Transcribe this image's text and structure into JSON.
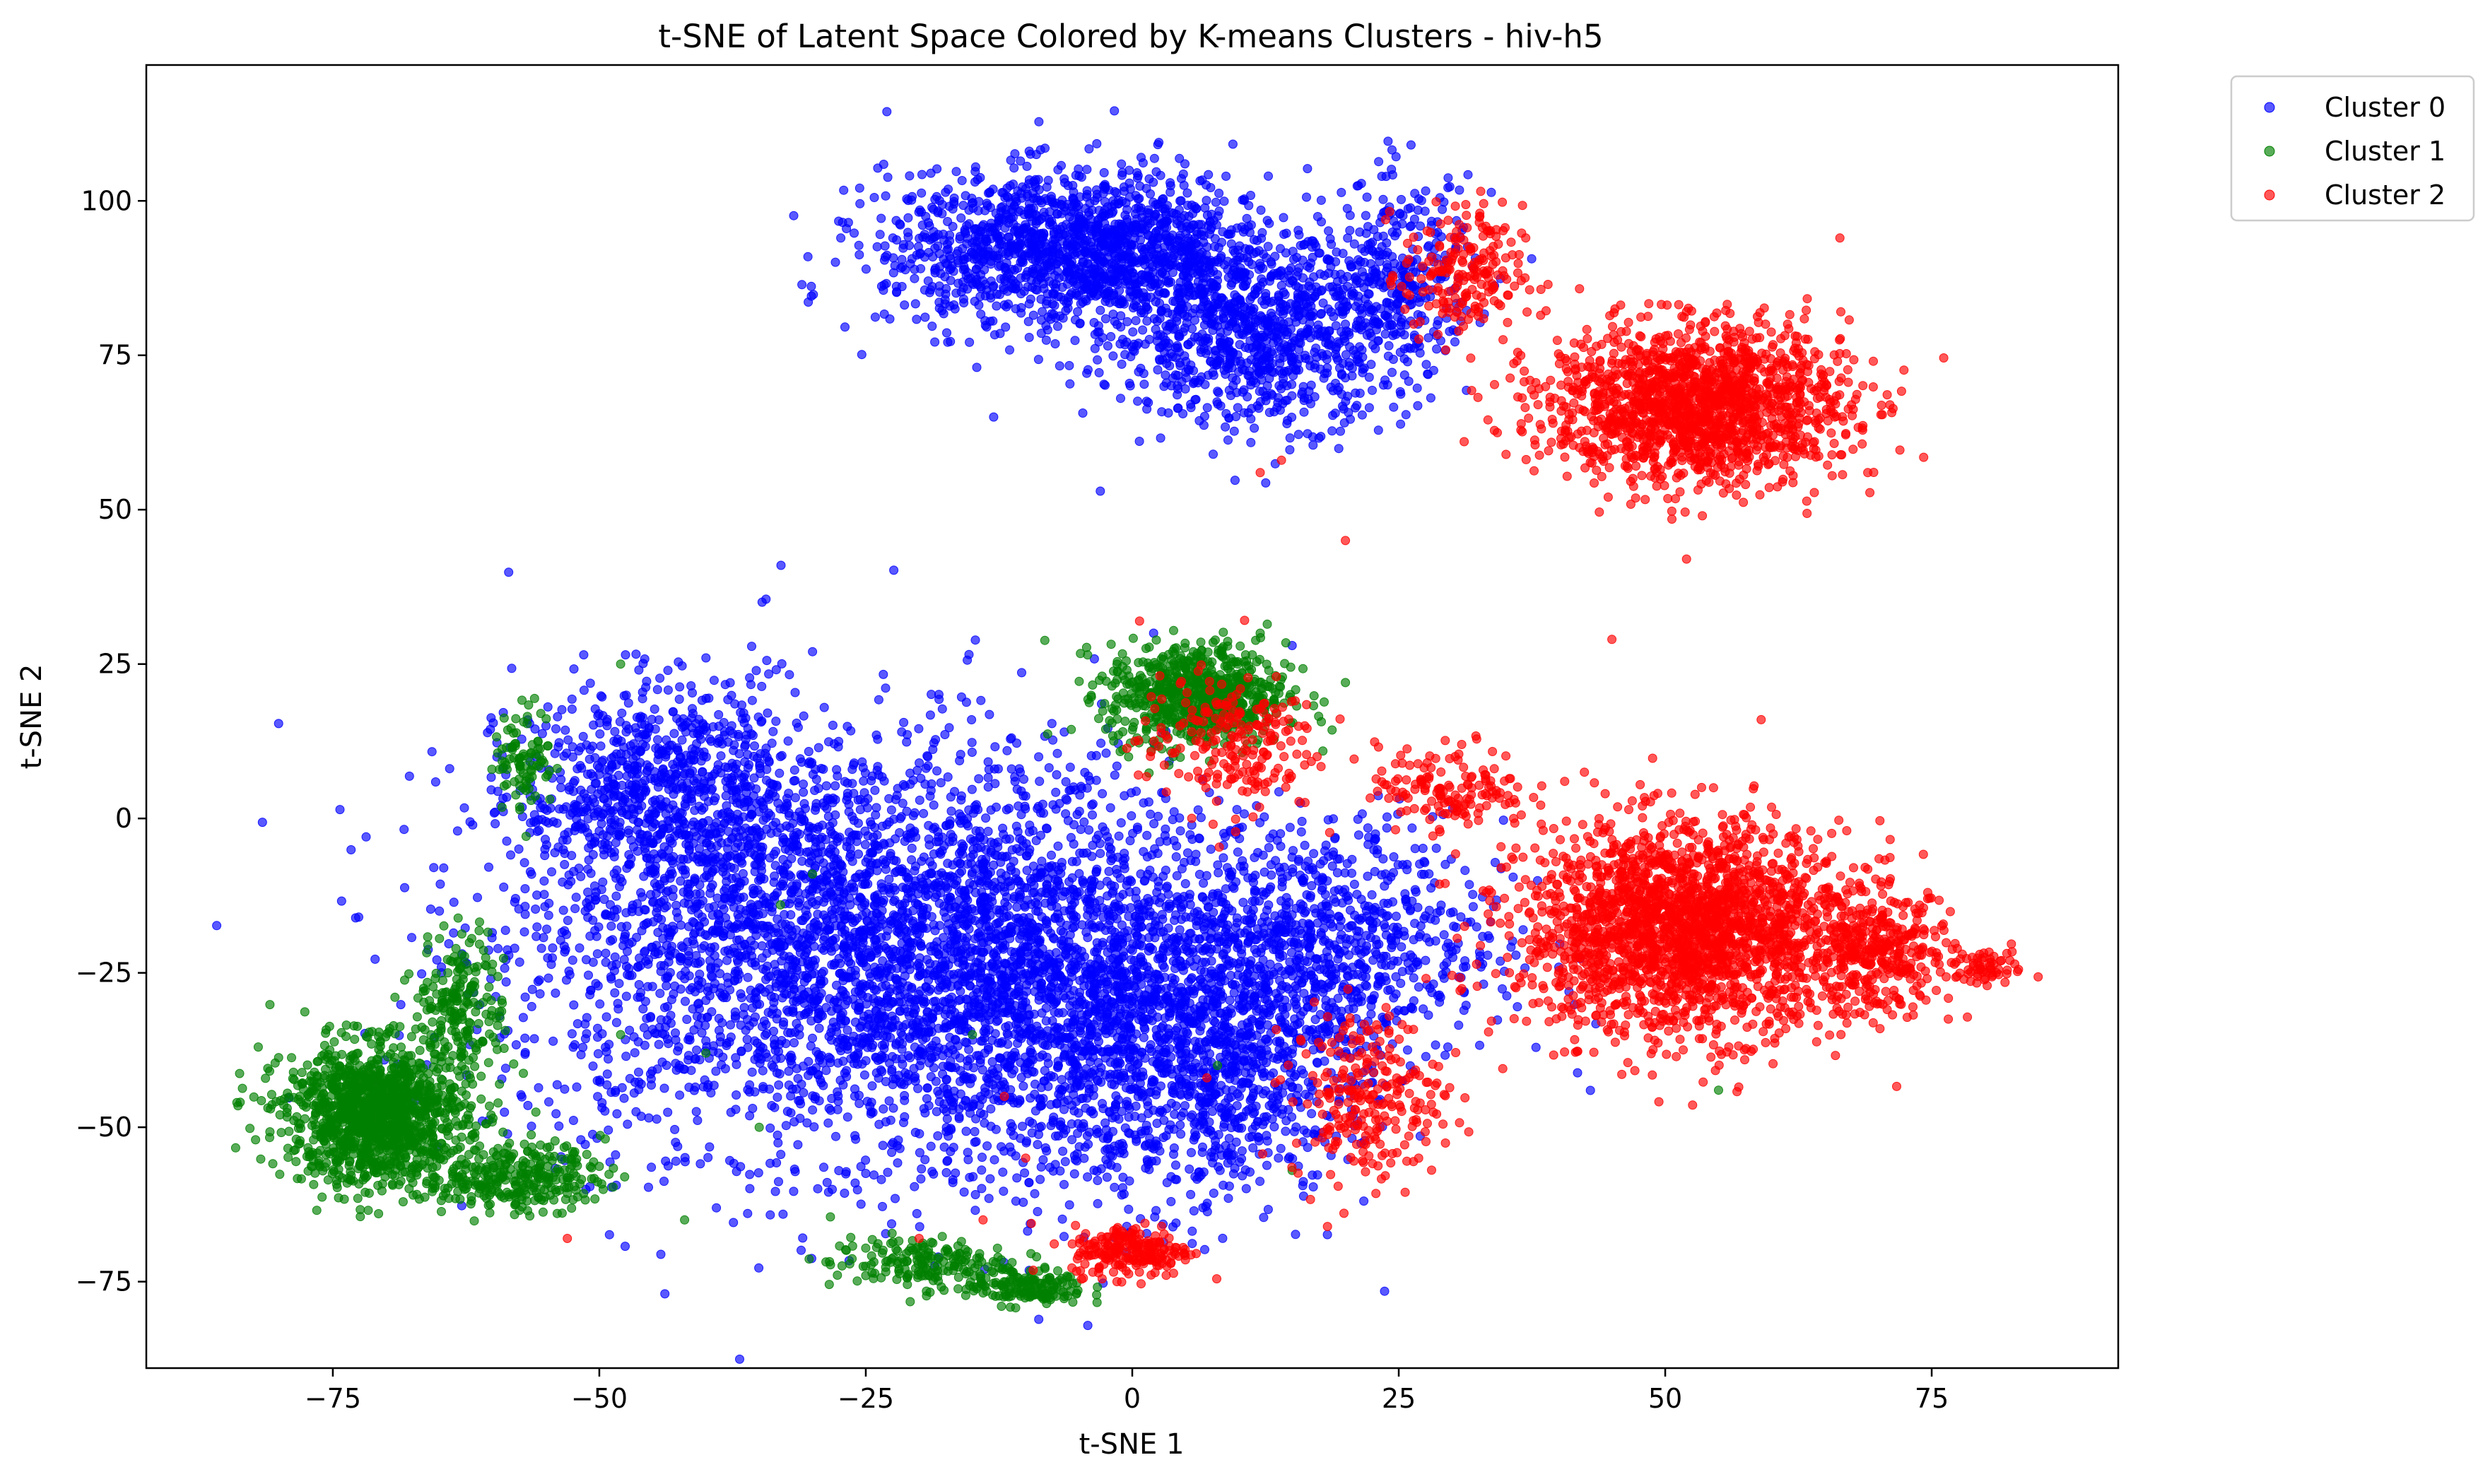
{
  "chart_data": {
    "type": "scatter",
    "title": "t-SNE of Latent Space Colored by K-means Clusters - hiv-h5",
    "xlabel": "t-SNE 1",
    "ylabel": "t-SNE 2",
    "xlim": [
      -92.5,
      92.5
    ],
    "ylim": [
      -89,
      122
    ],
    "xticks": [
      -75,
      -50,
      -25,
      0,
      25,
      50,
      75
    ],
    "yticks": [
      -75,
      -50,
      -25,
      0,
      25,
      50,
      75,
      100
    ],
    "xtick_labels": [
      "−75",
      "−50",
      "−25",
      "0",
      "25",
      "50",
      "75"
    ],
    "ytick_labels": [
      "−75",
      "−50",
      "−25",
      "0",
      "25",
      "50",
      "75",
      "100"
    ],
    "grid": false,
    "legend_position": "outside-top-right",
    "series": [
      {
        "name": "Cluster 0",
        "color": "#0000ff",
        "regions": [
          {
            "cx": -28,
            "cy": -20,
            "sx": 22,
            "sy": 24,
            "n": 3200
          },
          {
            "cx": -5,
            "cy": -30,
            "sx": 16,
            "sy": 22,
            "n": 1800
          },
          {
            "cx": 8,
            "cy": -40,
            "sx": 10,
            "sy": 14,
            "n": 700
          },
          {
            "cx": -45,
            "cy": 5,
            "sx": 9,
            "sy": 12,
            "n": 700
          },
          {
            "cx": 18,
            "cy": -20,
            "sx": 12,
            "sy": 14,
            "n": 800
          },
          {
            "cx": -5,
            "cy": 92,
            "sx": 13,
            "sy": 9,
            "n": 1600
          },
          {
            "cx": 12,
            "cy": 78,
            "sx": 10,
            "sy": 10,
            "n": 900
          },
          {
            "cx": 25,
            "cy": 88,
            "sx": 5,
            "sy": 11,
            "n": 300
          }
        ],
        "outliers": [
          [
            -13,
            65
          ],
          [
            -3,
            53
          ],
          [
            -65,
            -15
          ],
          [
            -55,
            15
          ],
          [
            -40,
            26
          ],
          [
            -30,
            27
          ],
          [
            15,
            28
          ],
          [
            2,
            30
          ]
        ]
      },
      {
        "name": "Cluster 1",
        "color": "#008000",
        "regions": [
          {
            "cx": -71,
            "cy": -48,
            "sx": 6,
            "sy": 8,
            "n": 1300
          },
          {
            "cx": -58,
            "cy": -58,
            "sx": 6,
            "sy": 4,
            "n": 300
          },
          {
            "cx": -63,
            "cy": -30,
            "sx": 3,
            "sy": 8,
            "n": 200
          },
          {
            "cx": 6,
            "cy": 20,
            "sx": 6,
            "sy": 6,
            "n": 700
          },
          {
            "cx": -20,
            "cy": -72,
            "sx": 6,
            "sy": 3,
            "n": 180
          },
          {
            "cx": -10,
            "cy": -76,
            "sx": 4,
            "sy": 2,
            "n": 150
          },
          {
            "cx": -57,
            "cy": 10,
            "sx": 2,
            "sy": 6,
            "n": 90
          }
        ],
        "outliers": [
          [
            -84,
            -46
          ],
          [
            -82,
            -37
          ],
          [
            -30,
            -9
          ],
          [
            -33,
            -14
          ],
          [
            -15,
            -35
          ],
          [
            -40,
            -38
          ],
          [
            -48,
            -35
          ],
          [
            -35,
            -50
          ],
          [
            -42,
            -65
          ],
          [
            8,
            -40
          ],
          [
            15,
            -57
          ],
          [
            20,
            22
          ],
          [
            12,
            30
          ],
          [
            55,
            -44
          ],
          [
            -48,
            25
          ]
        ]
      },
      {
        "name": "Cluster 2",
        "color": "#ff0000",
        "regions": [
          {
            "cx": 52,
            "cy": -18,
            "sx": 11,
            "sy": 12,
            "n": 2200
          },
          {
            "cx": 70,
            "cy": -22,
            "sx": 5,
            "sy": 7,
            "n": 350
          },
          {
            "cx": 80,
            "cy": -24,
            "sx": 2,
            "sy": 2,
            "n": 60
          },
          {
            "cx": 53,
            "cy": 67,
            "sx": 10,
            "sy": 9,
            "n": 1600
          },
          {
            "cx": 31,
            "cy": 88,
            "sx": 4,
            "sy": 8,
            "n": 200
          },
          {
            "cx": 0,
            "cy": -70,
            "sx": 4,
            "sy": 3,
            "n": 220
          },
          {
            "cx": 22,
            "cy": -45,
            "sx": 5,
            "sy": 10,
            "n": 250
          },
          {
            "cx": 9,
            "cy": 12,
            "sx": 6,
            "sy": 8,
            "n": 220
          },
          {
            "cx": 30,
            "cy": 5,
            "sx": 5,
            "sy": 5,
            "n": 150
          }
        ],
        "outliers": [
          [
            20,
            45
          ],
          [
            45,
            29
          ],
          [
            59,
            16
          ],
          [
            52,
            42
          ],
          [
            69,
            56
          ],
          [
            14,
            58
          ],
          [
            12,
            56
          ],
          [
            -10,
            -55
          ],
          [
            -12,
            -45
          ],
          [
            -14,
            -65
          ],
          [
            7,
            -42
          ],
          [
            -20,
            -68
          ],
          [
            -53,
            -68
          ]
        ]
      }
    ]
  }
}
